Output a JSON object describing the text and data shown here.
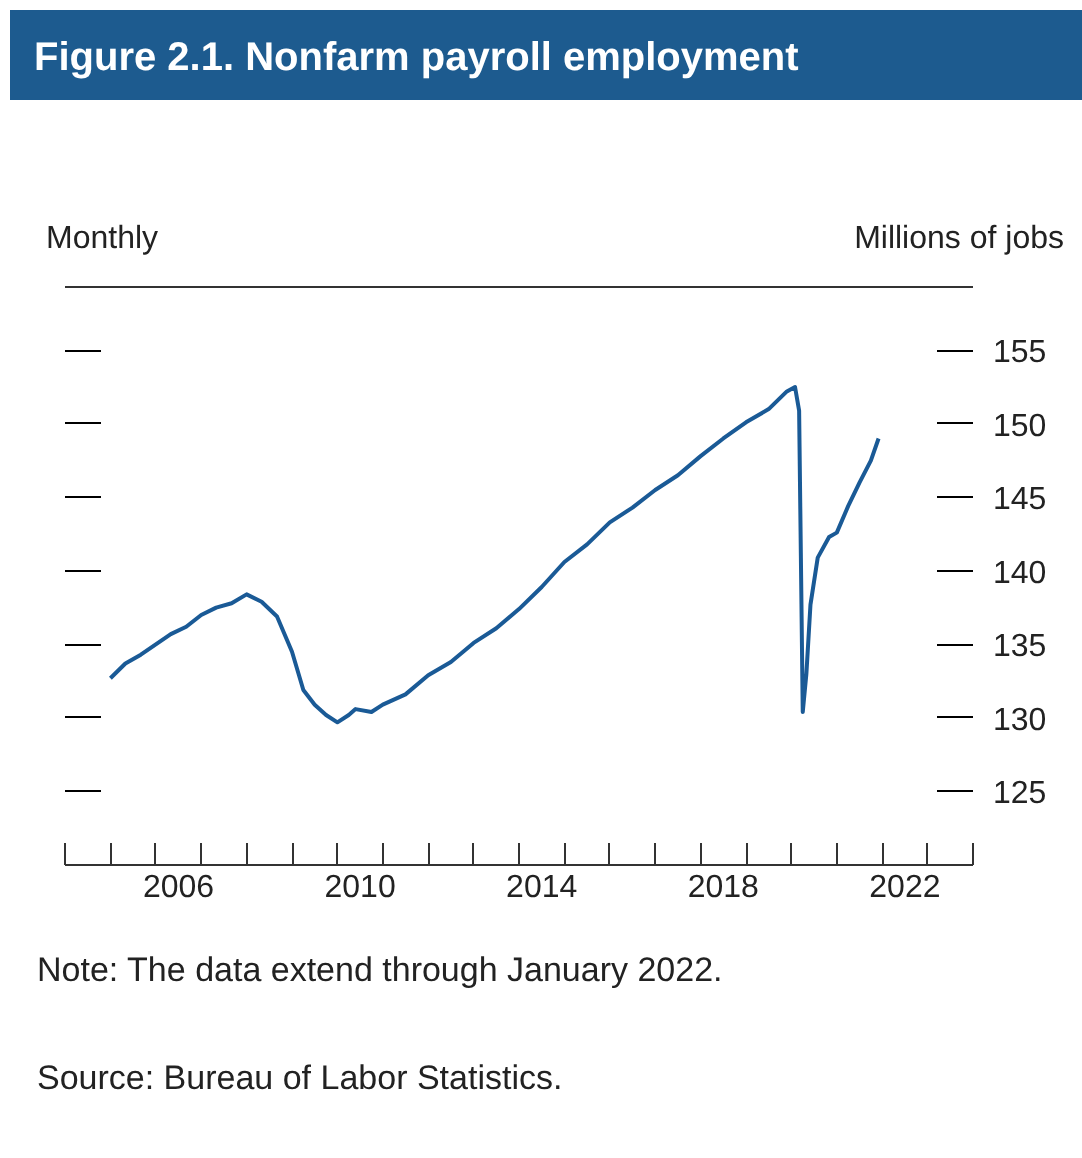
{
  "chart_data": {
    "type": "line",
    "title": "Figure 2.1. Nonfarm payroll employment",
    "subtitle": "Monthly",
    "ylabel": "Millions of jobs",
    "annotations": [
      "Note: The data extend through January 2022.",
      "Source: Bureau of Labor Statistics."
    ],
    "x": [
      2005.0,
      2005.33,
      2005.67,
      2006.0,
      2006.33,
      2006.67,
      2007.0,
      2007.33,
      2007.67,
      2008.0,
      2008.33,
      2008.67,
      2009.0,
      2009.25,
      2009.5,
      2009.75,
      2010.0,
      2010.25,
      2010.4,
      2010.75,
      2011.0,
      2011.5,
      2012.0,
      2012.5,
      2013.0,
      2013.5,
      2014.0,
      2014.5,
      2015.0,
      2015.5,
      2016.0,
      2016.5,
      2017.0,
      2017.5,
      2018.0,
      2018.5,
      2019.0,
      2019.5,
      2019.9,
      2020.08,
      2020.17,
      2020.25,
      2020.33,
      2020.42,
      2020.58,
      2020.83,
      2021.0,
      2021.25,
      2021.5,
      2021.75,
      2021.92
    ],
    "series": [
      {
        "color": "#1a5a96",
        "values": [
          132.7,
          133.7,
          134.3,
          135.0,
          135.7,
          136.2,
          137.0,
          137.5,
          137.8,
          138.4,
          137.9,
          136.9,
          134.5,
          131.9,
          130.9,
          130.2,
          129.7,
          130.2,
          130.6,
          130.4,
          130.9,
          131.6,
          132.9,
          133.8,
          135.1,
          136.1,
          137.4,
          138.9,
          140.6,
          141.8,
          143.3,
          144.3,
          145.5,
          146.5,
          147.8,
          149.0,
          150.1,
          151.0,
          152.2,
          152.5,
          150.9,
          130.4,
          133.0,
          137.7,
          140.9,
          142.3,
          142.6,
          144.4,
          146.0,
          147.5,
          149.0
        ]
      }
    ],
    "xlim": [
      2004,
      2024
    ],
    "ylim": [
      120,
      159.3
    ],
    "xticks": [
      {
        "value": 2004,
        "label": null
      },
      {
        "value": 2005,
        "label": null
      },
      {
        "value": 2006,
        "label": null
      },
      {
        "value": 2007,
        "label": null
      },
      {
        "value": 2008,
        "label": null
      },
      {
        "value": 2009,
        "label": null
      },
      {
        "value": 2010,
        "label": null
      },
      {
        "value": 2011,
        "label": null
      },
      {
        "value": 2012,
        "label": null
      },
      {
        "value": 2013,
        "label": null
      },
      {
        "value": 2014,
        "label": null
      },
      {
        "value": 2015,
        "label": null
      },
      {
        "value": 2016,
        "label": null
      },
      {
        "value": 2017,
        "label": null
      },
      {
        "value": 2018,
        "label": null
      },
      {
        "value": 2019,
        "label": null
      },
      {
        "value": 2020,
        "label": null
      },
      {
        "value": 2021,
        "label": null
      },
      {
        "value": 2022,
        "label": null
      },
      {
        "value": 2023,
        "label": null
      },
      {
        "value": 2024,
        "label": null
      },
      {
        "value": 2006.5,
        "label": "2006"
      },
      {
        "value": 2010.5,
        "label": "2010"
      },
      {
        "value": 2014.5,
        "label": "2014"
      },
      {
        "value": 2018.5,
        "label": "2018"
      },
      {
        "value": 2022.5,
        "label": "2022"
      }
    ],
    "yticks": [
      125,
      130,
      135,
      140,
      145,
      150,
      155
    ],
    "grid": false,
    "line_style": "solid",
    "marker": "none"
  }
}
